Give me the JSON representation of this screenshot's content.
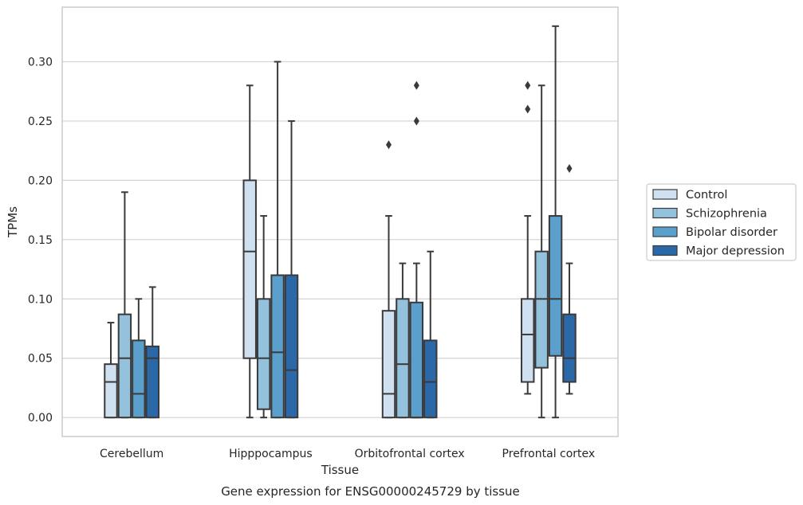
{
  "chart_data": {
    "type": "boxplot",
    "title": "",
    "caption": "Gene expression for ENSG00000245729 by tissue",
    "xlabel": "Tissue",
    "ylabel": "TPMs",
    "ylim": [
      -0.016,
      0.346
    ],
    "yticks": [
      0.0,
      0.05,
      0.1,
      0.15,
      0.2,
      0.25,
      0.3
    ],
    "ytick_labels": [
      "0.00",
      "0.05",
      "0.10",
      "0.15",
      "0.20",
      "0.25",
      "0.30"
    ],
    "grid": "horizontal",
    "legend_position": "outside-right",
    "categories": [
      "Cerebellum",
      "Hipppocampus",
      "Orbitofrontal cortex",
      "Prefrontal cortex"
    ],
    "series": [
      {
        "name": "Control",
        "color": "#cfe0f1",
        "boxes": [
          {
            "whislo": 0.0,
            "q1": 0.0,
            "med": 0.03,
            "q3": 0.045,
            "whishi": 0.08,
            "fliers": []
          },
          {
            "whislo": 0.0,
            "q1": 0.05,
            "med": 0.14,
            "q3": 0.2,
            "whishi": 0.28,
            "fliers": []
          },
          {
            "whislo": 0.0,
            "q1": 0.0,
            "med": 0.02,
            "q3": 0.09,
            "whishi": 0.17,
            "fliers": [
              0.23
            ]
          },
          {
            "whislo": 0.02,
            "q1": 0.03,
            "med": 0.07,
            "q3": 0.1,
            "whishi": 0.17,
            "fliers": [
              0.26,
              0.28
            ]
          }
        ]
      },
      {
        "name": "Schizophrenia",
        "color": "#94c1dc",
        "boxes": [
          {
            "whislo": 0.0,
            "q1": 0.0,
            "med": 0.05,
            "q3": 0.087,
            "whishi": 0.19,
            "fliers": []
          },
          {
            "whislo": 0.0,
            "q1": 0.007,
            "med": 0.05,
            "q3": 0.1,
            "whishi": 0.17,
            "fliers": []
          },
          {
            "whislo": 0.0,
            "q1": 0.0,
            "med": 0.045,
            "q3": 0.1,
            "whishi": 0.13,
            "fliers": []
          },
          {
            "whislo": 0.0,
            "q1": 0.042,
            "med": 0.1,
            "q3": 0.14,
            "whishi": 0.28,
            "fliers": []
          }
        ]
      },
      {
        "name": "Bipolar disorder",
        "color": "#5b9fcc",
        "boxes": [
          {
            "whislo": 0.0,
            "q1": 0.0,
            "med": 0.02,
            "q3": 0.065,
            "whishi": 0.1,
            "fliers": []
          },
          {
            "whislo": 0.0,
            "q1": 0.0,
            "med": 0.055,
            "q3": 0.12,
            "whishi": 0.3,
            "fliers": []
          },
          {
            "whislo": 0.0,
            "q1": 0.0,
            "med": 0.0,
            "q3": 0.097,
            "whishi": 0.13,
            "fliers": [
              0.25,
              0.28
            ]
          },
          {
            "whislo": 0.0,
            "q1": 0.052,
            "med": 0.1,
            "q3": 0.17,
            "whishi": 0.33,
            "fliers": []
          }
        ]
      },
      {
        "name": "Major depression",
        "color": "#2b68a8",
        "boxes": [
          {
            "whislo": 0.0,
            "q1": 0.0,
            "med": 0.05,
            "q3": 0.06,
            "whishi": 0.11,
            "fliers": []
          },
          {
            "whislo": 0.0,
            "q1": 0.0,
            "med": 0.04,
            "q3": 0.12,
            "whishi": 0.25,
            "fliers": []
          },
          {
            "whislo": 0.0,
            "q1": 0.0,
            "med": 0.03,
            "q3": 0.065,
            "whishi": 0.14,
            "fliers": []
          },
          {
            "whislo": 0.02,
            "q1": 0.03,
            "med": 0.05,
            "q3": 0.087,
            "whishi": 0.13,
            "fliers": [
              0.21
            ]
          }
        ]
      }
    ]
  }
}
